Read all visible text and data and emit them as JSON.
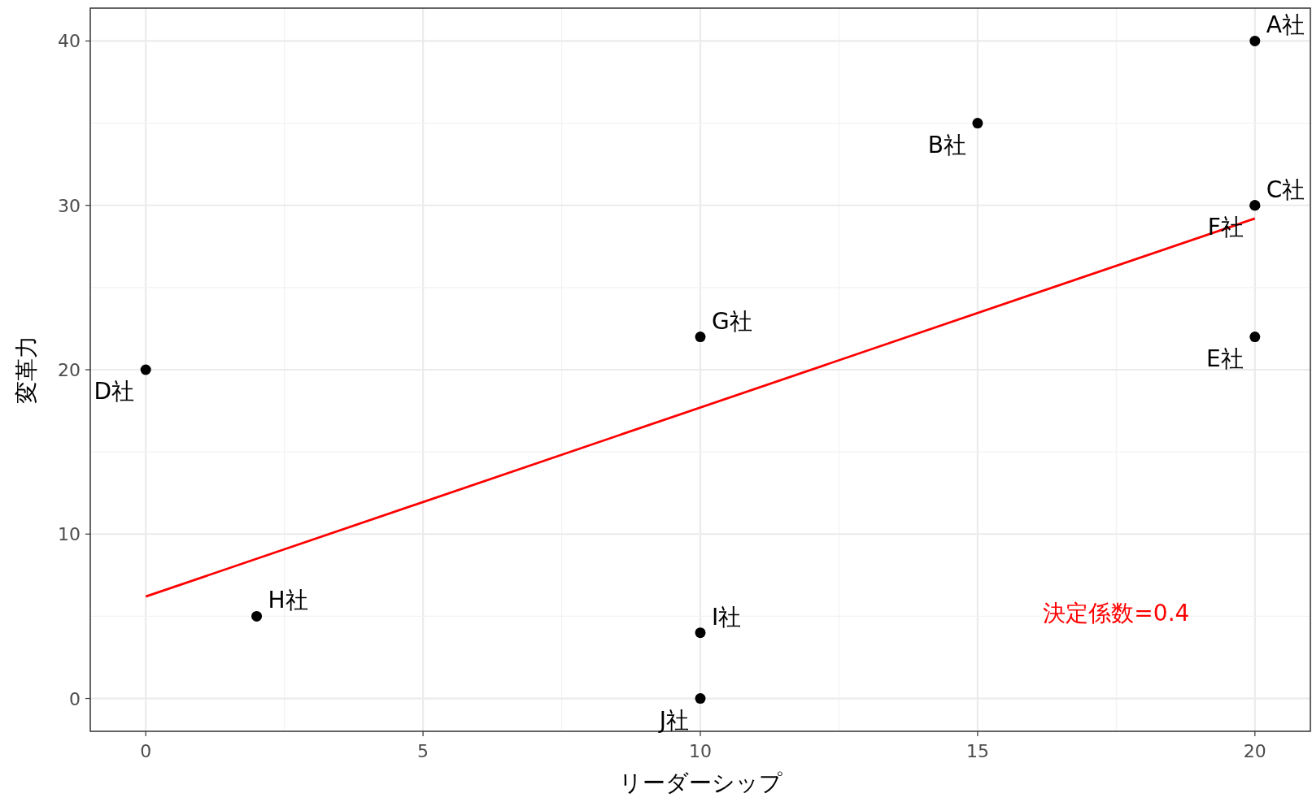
{
  "chart_data": {
    "type": "scatter",
    "xlabel": "リーダーシップ",
    "ylabel": "変革力",
    "series": [
      {
        "marker": "circle",
        "color": "#000000",
        "x": [
          20,
          15,
          20,
          20,
          10,
          20,
          2,
          0,
          10,
          10
        ],
        "values": [
          40,
          35,
          30,
          30,
          22,
          22,
          5,
          20,
          4,
          0
        ]
      },
      {
        "type": "line",
        "color": "#ff0000",
        "x": [
          0,
          20
        ],
        "values": [
          6.2,
          29.2
        ]
      }
    ],
    "annotations": [
      {
        "text": "A社",
        "x": 20,
        "y": 40
      },
      {
        "text": "B社",
        "x": 15,
        "y": 35
      },
      {
        "text": "C社",
        "x": 20,
        "y": 30
      },
      {
        "text": "F社",
        "x": 20,
        "y": 30
      },
      {
        "text": "G社",
        "x": 10,
        "y": 22
      },
      {
        "text": "E社",
        "x": 20,
        "y": 22
      },
      {
        "text": "H社",
        "x": 2,
        "y": 5
      },
      {
        "text": "D社",
        "x": 0,
        "y": 20
      },
      {
        "text": "I社",
        "x": 10,
        "y": 4
      },
      {
        "text": "J社",
        "x": 10,
        "y": 0
      },
      "決定係数=0.4"
    ],
    "xlim": [
      -1,
      21
    ],
    "ylim": [
      -2,
      42
    ],
    "xticks": [
      0,
      5,
      10,
      15,
      20
    ],
    "yticks": [
      0,
      10,
      20,
      30,
      40
    ],
    "grid": true
  }
}
